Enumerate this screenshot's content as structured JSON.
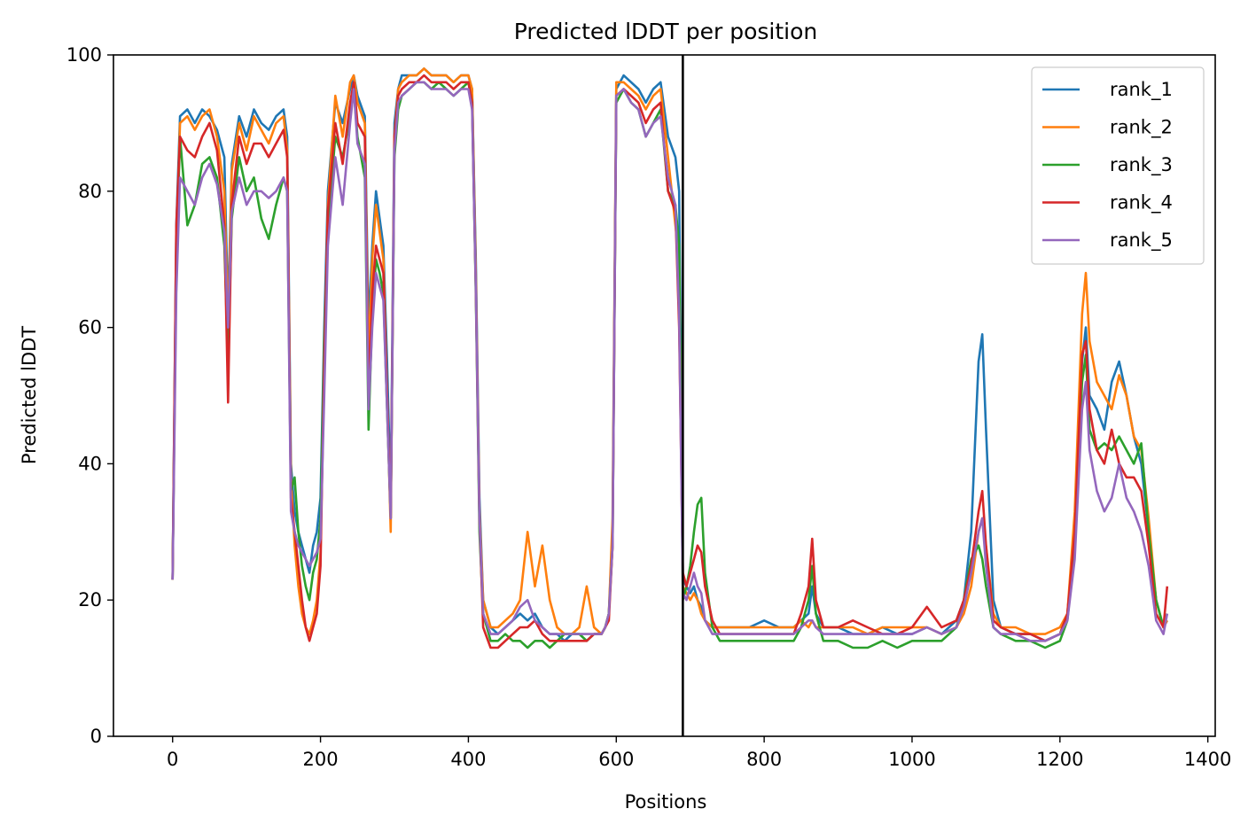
{
  "chart_data": {
    "type": "line",
    "title": "Predicted lDDT per position",
    "xlabel": "Positions",
    "ylabel": "Predicted lDDT",
    "xlim": [
      -80,
      1410
    ],
    "ylim": [
      0,
      100
    ],
    "xticks": [
      0,
      200,
      400,
      600,
      800,
      1000,
      1200,
      1400
    ],
    "yticks": [
      0,
      20,
      40,
      60,
      80,
      100
    ],
    "grid": false,
    "legend": "top-right",
    "vline": {
      "x": 690,
      "color": "#000000"
    },
    "x": [
      0,
      5,
      10,
      20,
      30,
      40,
      50,
      60,
      70,
      75,
      80,
      90,
      100,
      110,
      120,
      130,
      140,
      150,
      155,
      160,
      165,
      170,
      175,
      180,
      185,
      190,
      195,
      200,
      205,
      210,
      220,
      230,
      240,
      245,
      250,
      260,
      265,
      270,
      275,
      280,
      285,
      290,
      295,
      300,
      305,
      310,
      320,
      330,
      340,
      350,
      360,
      370,
      380,
      390,
      400,
      405,
      410,
      415,
      420,
      430,
      440,
      450,
      460,
      470,
      480,
      490,
      500,
      510,
      520,
      530,
      540,
      550,
      560,
      570,
      580,
      585,
      590,
      595,
      600,
      610,
      620,
      630,
      640,
      650,
      660,
      670,
      680,
      685,
      690,
      695,
      700,
      705,
      710,
      715,
      720,
      730,
      740,
      760,
      780,
      800,
      820,
      840,
      850,
      860,
      865,
      870,
      880,
      900,
      920,
      940,
      960,
      980,
      1000,
      1020,
      1040,
      1060,
      1070,
      1080,
      1090,
      1095,
      1100,
      1110,
      1120,
      1140,
      1160,
      1180,
      1200,
      1210,
      1220,
      1230,
      1235,
      1240,
      1250,
      1260,
      1270,
      1280,
      1290,
      1300,
      1310,
      1320,
      1330,
      1340,
      1345
    ],
    "series": [
      {
        "name": "rank_1",
        "color": "#1f77b4",
        "values": [
          23,
          75,
          91,
          92,
          90,
          92,
          91,
          89,
          85,
          62,
          84,
          91,
          88,
          92,
          90,
          89,
          91,
          92,
          88,
          40,
          33,
          30,
          28,
          26,
          24,
          28,
          30,
          35,
          60,
          80,
          93,
          90,
          95,
          97,
          94,
          91,
          60,
          72,
          80,
          76,
          72,
          55,
          35,
          90,
          95,
          97,
          97,
          97,
          98,
          97,
          97,
          97,
          96,
          97,
          97,
          95,
          70,
          35,
          20,
          16,
          15,
          16,
          17,
          18,
          17,
          18,
          16,
          15,
          15,
          14,
          15,
          15,
          14,
          15,
          15,
          16,
          18,
          30,
          95,
          97,
          96,
          95,
          93,
          95,
          96,
          88,
          85,
          80,
          23,
          22,
          21,
          22,
          20,
          19,
          17,
          16,
          16,
          16,
          16,
          17,
          16,
          16,
          17,
          18,
          22,
          18,
          16,
          16,
          15,
          15,
          16,
          15,
          15,
          16,
          15,
          17,
          20,
          30,
          55,
          59,
          45,
          20,
          16,
          15,
          15,
          14,
          15,
          18,
          30,
          55,
          60,
          50,
          48,
          45,
          52,
          55,
          50,
          44,
          40,
          30,
          20,
          16,
          17
        ]
      },
      {
        "name": "rank_2",
        "color": "#ff7f0e",
        "values": [
          23,
          72,
          90,
          91,
          89,
          91,
          92,
          88,
          80,
          60,
          83,
          90,
          86,
          91,
          89,
          87,
          90,
          91,
          86,
          38,
          28,
          22,
          18,
          16,
          15,
          17,
          20,
          27,
          55,
          78,
          94,
          88,
          96,
          97,
          93,
          90,
          55,
          70,
          78,
          74,
          70,
          50,
          30,
          88,
          95,
          96,
          97,
          97,
          98,
          97,
          97,
          97,
          96,
          97,
          97,
          95,
          68,
          33,
          20,
          16,
          16,
          17,
          18,
          20,
          30,
          22,
          28,
          20,
          16,
          15,
          15,
          16,
          22,
          16,
          15,
          16,
          18,
          32,
          96,
          96,
          95,
          94,
          92,
          94,
          95,
          85,
          75,
          70,
          22,
          21,
          20,
          21,
          20,
          18,
          17,
          16,
          16,
          16,
          16,
          16,
          16,
          16,
          17,
          16,
          17,
          16,
          16,
          16,
          16,
          15,
          16,
          16,
          16,
          16,
          15,
          16,
          18,
          22,
          30,
          32,
          28,
          18,
          16,
          16,
          15,
          15,
          16,
          18,
          33,
          62,
          68,
          58,
          52,
          50,
          48,
          53,
          50,
          44,
          42,
          32,
          20,
          16,
          17
        ]
      },
      {
        "name": "rank_3",
        "color": "#2ca02c",
        "values": [
          23,
          70,
          88,
          75,
          78,
          84,
          85,
          82,
          72,
          55,
          76,
          85,
          80,
          82,
          76,
          73,
          78,
          82,
          80,
          36,
          38,
          30,
          25,
          22,
          20,
          24,
          26,
          32,
          58,
          75,
          88,
          85,
          91,
          95,
          88,
          82,
          45,
          62,
          70,
          68,
          65,
          48,
          32,
          85,
          92,
          94,
          95,
          96,
          96,
          95,
          96,
          95,
          94,
          95,
          96,
          93,
          65,
          30,
          18,
          14,
          14,
          15,
          14,
          14,
          13,
          14,
          14,
          13,
          14,
          15,
          15,
          15,
          14,
          15,
          15,
          16,
          18,
          28,
          93,
          95,
          93,
          92,
          88,
          90,
          92,
          80,
          78,
          72,
          20,
          22,
          25,
          30,
          34,
          35,
          24,
          16,
          14,
          14,
          14,
          14,
          14,
          14,
          16,
          20,
          25,
          18,
          14,
          14,
          13,
          13,
          14,
          13,
          14,
          14,
          14,
          16,
          20,
          26,
          28,
          26,
          22,
          16,
          15,
          14,
          14,
          13,
          14,
          17,
          28,
          52,
          56,
          45,
          42,
          43,
          42,
          44,
          42,
          40,
          43,
          30,
          20,
          16,
          18
        ]
      },
      {
        "name": "rank_4",
        "color": "#d62728",
        "values": [
          23,
          75,
          88,
          86,
          85,
          88,
          90,
          86,
          75,
          49,
          78,
          88,
          84,
          87,
          87,
          85,
          87,
          89,
          85,
          35,
          30,
          25,
          20,
          16,
          14,
          16,
          18,
          25,
          55,
          77,
          90,
          84,
          93,
          96,
          90,
          88,
          50,
          65,
          72,
          70,
          68,
          50,
          32,
          88,
          94,
          95,
          96,
          96,
          97,
          96,
          96,
          96,
          95,
          96,
          96,
          93,
          66,
          32,
          16,
          13,
          13,
          14,
          15,
          16,
          16,
          17,
          15,
          14,
          14,
          14,
          14,
          14,
          14,
          15,
          15,
          16,
          17,
          28,
          94,
          95,
          94,
          93,
          90,
          92,
          93,
          80,
          77,
          60,
          24,
          22,
          24,
          26,
          28,
          27,
          22,
          17,
          15,
          15,
          15,
          15,
          15,
          15,
          18,
          22,
          29,
          20,
          16,
          16,
          17,
          16,
          15,
          15,
          16,
          19,
          16,
          17,
          20,
          25,
          33,
          36,
          28,
          17,
          16,
          15,
          15,
          14,
          15,
          18,
          30,
          56,
          58,
          48,
          42,
          40,
          45,
          40,
          38,
          38,
          36,
          28,
          18,
          16,
          22
        ]
      },
      {
        "name": "rank_5",
        "color": "#9467bd",
        "values": [
          23,
          65,
          82,
          80,
          78,
          82,
          84,
          81,
          74,
          60,
          77,
          82,
          78,
          80,
          80,
          79,
          80,
          82,
          80,
          33,
          30,
          28,
          27,
          26,
          25,
          26,
          27,
          29,
          50,
          72,
          85,
          78,
          90,
          95,
          87,
          84,
          48,
          60,
          68,
          66,
          64,
          48,
          32,
          86,
          93,
          94,
          95,
          96,
          96,
          95,
          95,
          95,
          94,
          95,
          95,
          92,
          66,
          32,
          18,
          15,
          15,
          16,
          17,
          19,
          20,
          17,
          16,
          15,
          15,
          15,
          15,
          15,
          15,
          15,
          15,
          16,
          18,
          28,
          94,
          95,
          93,
          92,
          88,
          90,
          91,
          82,
          78,
          62,
          21,
          20,
          22,
          24,
          22,
          21,
          17,
          15,
          15,
          15,
          15,
          15,
          15,
          15,
          16,
          17,
          17,
          16,
          15,
          15,
          15,
          15,
          15,
          15,
          15,
          16,
          15,
          16,
          19,
          24,
          30,
          32,
          25,
          16,
          15,
          15,
          14,
          14,
          15,
          17,
          26,
          48,
          52,
          42,
          36,
          33,
          35,
          40,
          35,
          33,
          30,
          25,
          17,
          15,
          18
        ]
      }
    ]
  }
}
